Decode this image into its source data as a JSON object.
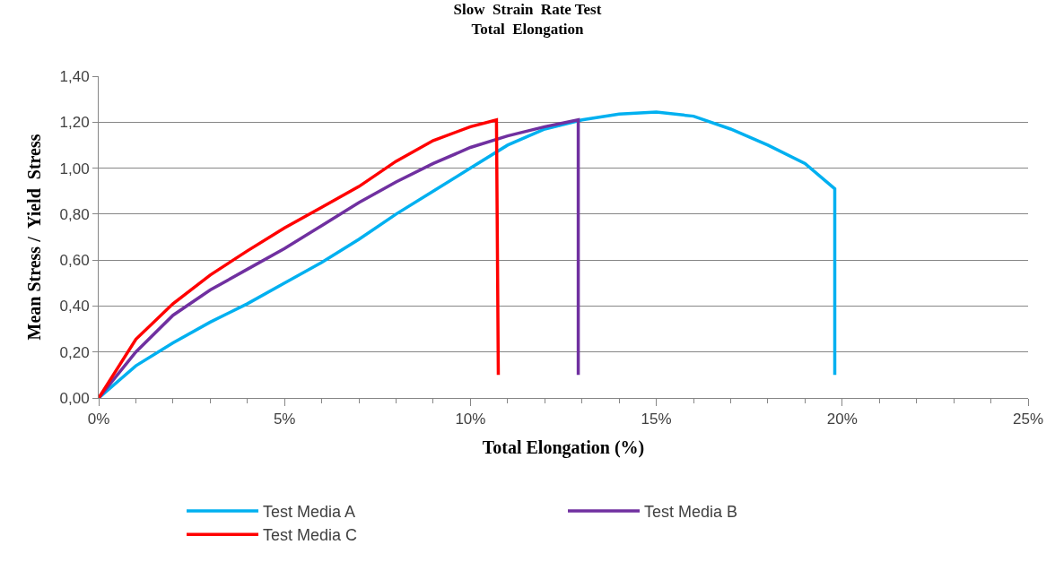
{
  "chart_data": {
    "type": "line",
    "title": "Slow  Strain  Rate Test\nTotal  Elongation",
    "xlabel": "Total Elongation (%)",
    "ylabel": "Mean Stress /  Yield  Stress",
    "xlim": [
      0,
      25
    ],
    "xticks": [
      {
        "value": 0,
        "label": "0%"
      },
      {
        "value": 5,
        "label": "5%"
      },
      {
        "value": 10,
        "label": "10%"
      },
      {
        "value": 15,
        "label": "15%"
      },
      {
        "value": 20,
        "label": "20%"
      },
      {
        "value": 25,
        "label": "25%"
      }
    ],
    "ylim": [
      0,
      1.4
    ],
    "yticks": [
      {
        "value": 0,
        "label": "0,00"
      },
      {
        "value": 0.2,
        "label": "0,20"
      },
      {
        "value": 0.4,
        "label": "0,40"
      },
      {
        "value": 0.6,
        "label": "0,60"
      },
      {
        "value": 0.8,
        "label": "0,80"
      },
      {
        "value": 1.0,
        "label": "1,00"
      },
      {
        "value": 1.2,
        "label": "1,20"
      },
      {
        "value": 1.4,
        "label": "1,40"
      }
    ],
    "grid": "y",
    "legend": "bottom",
    "marker": "none",
    "line_style": "solid",
    "series": [
      {
        "name": "Test Media A",
        "color": "#00b0f0",
        "x": [
          0,
          1,
          2,
          3,
          4,
          5,
          6,
          7,
          8,
          9,
          10,
          11,
          12,
          13,
          14,
          15,
          16,
          17,
          18,
          19,
          19.8,
          19.8
        ],
        "values": [
          0,
          0.14,
          0.24,
          0.33,
          0.41,
          0.5,
          0.59,
          0.69,
          0.8,
          0.9,
          1.0,
          1.1,
          1.17,
          1.21,
          1.235,
          1.244,
          1.226,
          1.17,
          1.1,
          1.02,
          0.91,
          0.1
        ]
      },
      {
        "name": "Test Media B",
        "color": "#7030a0",
        "x": [
          0,
          1,
          2,
          3,
          4,
          5,
          6,
          7,
          8,
          9,
          10,
          11,
          12,
          12.9,
          12.9
        ],
        "values": [
          0,
          0.2,
          0.36,
          0.47,
          0.56,
          0.65,
          0.75,
          0.85,
          0.94,
          1.02,
          1.09,
          1.14,
          1.18,
          1.21,
          0.1
        ]
      },
      {
        "name": "Test Media C",
        "color": "#ff0000",
        "x": [
          0,
          1,
          2,
          3,
          4,
          5,
          6,
          7,
          8,
          9,
          10,
          10.7,
          10.75
        ],
        "values": [
          0,
          0.255,
          0.41,
          0.535,
          0.64,
          0.74,
          0.83,
          0.92,
          1.03,
          1.12,
          1.18,
          1.21,
          0.1
        ]
      }
    ]
  }
}
